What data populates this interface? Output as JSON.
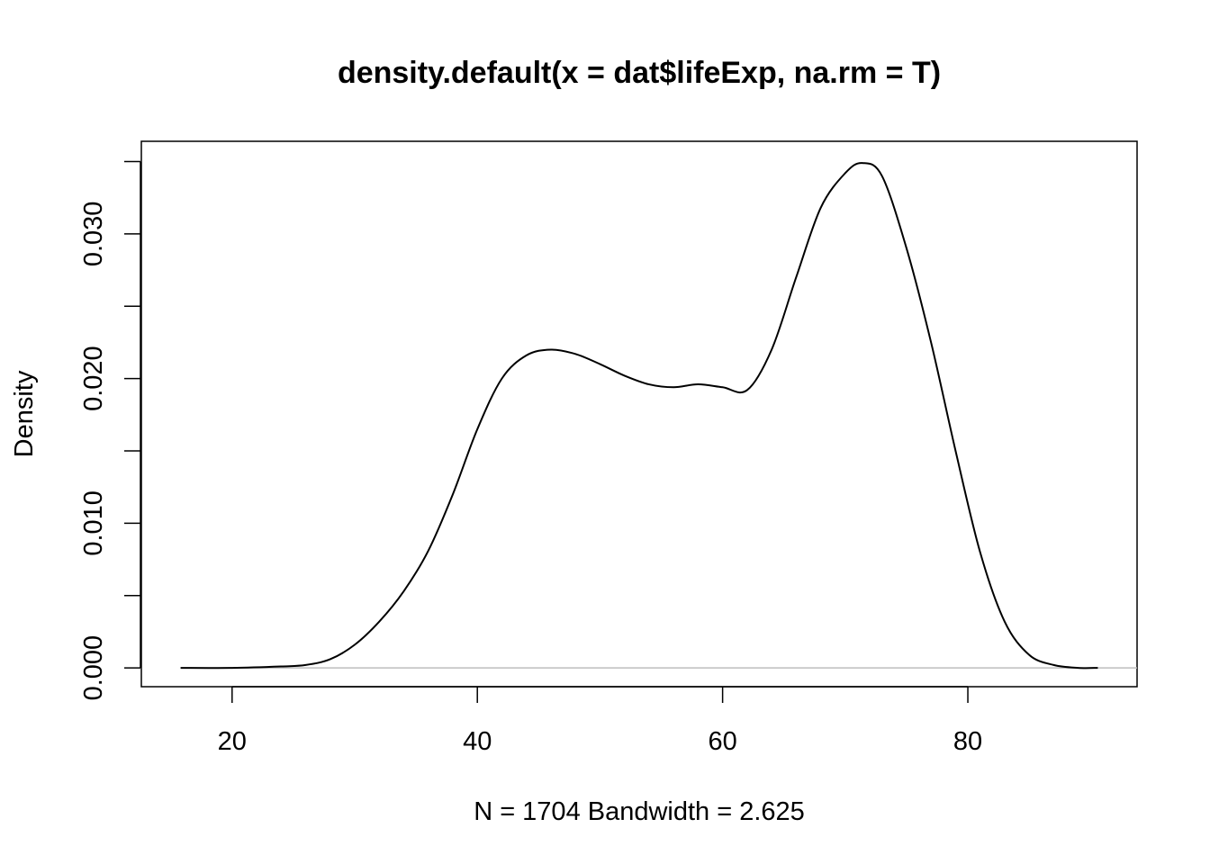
{
  "chart_data": {
    "type": "line",
    "title": "density.default(x = dat$lifeExp, na.rm = T)",
    "xlabel": "N = 1704   Bandwidth = 2.625",
    "ylabel": "Density",
    "xlim": [
      12.6,
      93.8
    ],
    "ylim": [
      -0.0013,
      0.0364
    ],
    "x_ticks": [
      20,
      40,
      60,
      80
    ],
    "x_tick_labels": [
      "20",
      "40",
      "60",
      "80"
    ],
    "y_ticks": [
      0.0,
      0.005,
      0.01,
      0.015,
      0.02,
      0.025,
      0.03,
      0.035
    ],
    "y_tick_labels": [
      "0.000",
      "",
      "0.010",
      "",
      "0.020",
      "",
      "0.030",
      ""
    ],
    "grid": false,
    "legend": "none",
    "baseline": {
      "y": 0,
      "color": "#bebebe"
    },
    "line_color": "#000000",
    "series": [
      {
        "x": [
          15.8,
          20,
          24,
          26,
          28,
          30,
          32,
          34,
          36,
          38,
          40,
          42,
          44,
          46,
          48,
          50,
          52,
          54,
          56,
          58,
          60,
          62,
          64,
          66,
          68,
          70,
          71.4,
          73,
          75,
          77,
          79,
          81,
          83,
          85,
          87,
          89,
          90.6
        ],
        "y": [
          0.0,
          0.0,
          0.0001,
          0.0002,
          0.0006,
          0.0016,
          0.0032,
          0.0053,
          0.0081,
          0.012,
          0.0165,
          0.02,
          0.0216,
          0.022,
          0.0217,
          0.021,
          0.0202,
          0.0196,
          0.0194,
          0.0196,
          0.0194,
          0.0192,
          0.022,
          0.027,
          0.0318,
          0.0342,
          0.0349,
          0.034,
          0.029,
          0.0225,
          0.015,
          0.008,
          0.0032,
          0.0009,
          0.0002,
          0.0,
          0.0
        ]
      }
    ]
  }
}
